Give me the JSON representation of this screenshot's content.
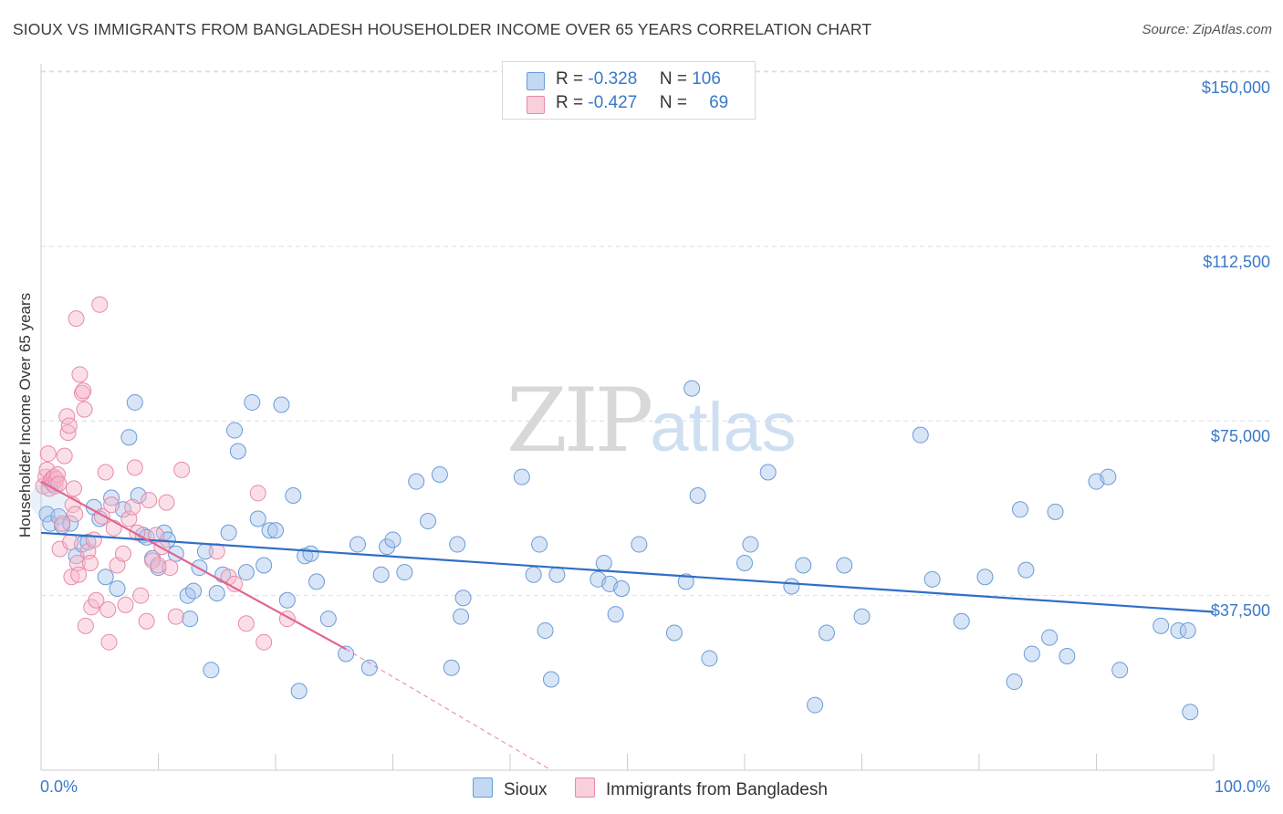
{
  "title": "SIOUX VS IMMIGRANTS FROM BANGLADESH HOUSEHOLDER INCOME OVER 65 YEARS CORRELATION CHART",
  "source": "Source: ZipAtlas.com",
  "watermark": {
    "zip": "ZIP",
    "atlas": "atlas"
  },
  "colors": {
    "sioux_fill": "#a9c6ee",
    "sioux_stroke": "#6b9bd8",
    "sioux_line": "#2f6fc7",
    "bang_fill": "#f6b9cc",
    "bang_stroke": "#e88aa8",
    "bang_line": "#e4648e",
    "grid": "#dddddd",
    "axis_label": "#3a78c9"
  },
  "legend_top": {
    "rows": [
      {
        "r_label": "R =",
        "r_value": "-0.328",
        "n_label": "N =",
        "n_value": "106"
      },
      {
        "r_label": "R =",
        "r_value": "-0.427",
        "n_label": "N =",
        "n_value": "69"
      }
    ]
  },
  "chart_data": {
    "type": "scatter",
    "title": "SIOUX VS IMMIGRANTS FROM BANGLADESH HOUSEHOLDER INCOME OVER 65 YEARS CORRELATION CHART",
    "xlabel": "",
    "ylabel": "Householder Income Over 65 years",
    "xlim": [
      0,
      100
    ],
    "ylim": [
      0,
      155000
    ],
    "x_tick_labels": [
      "0.0%",
      "100.0%"
    ],
    "y_ticks": [
      37500,
      75000,
      112500,
      150000
    ],
    "y_tick_labels": [
      "$37,500",
      "$75,000",
      "$112,500",
      "$150,000"
    ],
    "legend": [
      "Sioux",
      "Immigrants from Bangladesh"
    ],
    "series": [
      {
        "name": "Sioux",
        "stats": {
          "R": -0.328,
          "N": 106
        },
        "trend": {
          "x": [
            0,
            100
          ],
          "y": [
            51000,
            34000
          ]
        },
        "points": [
          [
            0.5,
            55000
          ],
          [
            0.8,
            53000
          ],
          [
            1.5,
            54500
          ],
          [
            1.8,
            52500
          ],
          [
            2.5,
            53000
          ],
          [
            3.0,
            46000
          ],
          [
            3.5,
            48500
          ],
          [
            4.0,
            49000
          ],
          [
            4.5,
            56500
          ],
          [
            5.0,
            54000
          ],
          [
            5.5,
            41500
          ],
          [
            6.0,
            58500
          ],
          [
            6.5,
            39000
          ],
          [
            7.0,
            56000
          ],
          [
            7.5,
            71500
          ],
          [
            8.0,
            79000
          ],
          [
            8.3,
            59000
          ],
          [
            8.7,
            50500
          ],
          [
            9.0,
            50000
          ],
          [
            9.5,
            45500
          ],
          [
            10.0,
            43500
          ],
          [
            10.5,
            51000
          ],
          [
            10.8,
            49500
          ],
          [
            11.5,
            46500
          ],
          [
            12.5,
            37500
          ],
          [
            12.7,
            32500
          ],
          [
            13.0,
            38500
          ],
          [
            13.5,
            43500
          ],
          [
            14.0,
            47000
          ],
          [
            14.5,
            21500
          ],
          [
            15.0,
            38000
          ],
          [
            15.5,
            42000
          ],
          [
            16.0,
            51000
          ],
          [
            16.5,
            73000
          ],
          [
            16.8,
            68500
          ],
          [
            17.5,
            42500
          ],
          [
            18.0,
            79000
          ],
          [
            18.5,
            54000
          ],
          [
            19.0,
            44000
          ],
          [
            19.5,
            51500
          ],
          [
            20.0,
            51500
          ],
          [
            20.5,
            78500
          ],
          [
            21.0,
            36500
          ],
          [
            21.5,
            59000
          ],
          [
            22.0,
            17000
          ],
          [
            22.5,
            46000
          ],
          [
            23.0,
            46500
          ],
          [
            23.5,
            40500
          ],
          [
            24.5,
            32500
          ],
          [
            26.0,
            25000
          ],
          [
            27.0,
            48500
          ],
          [
            28.0,
            22000
          ],
          [
            29.0,
            42000
          ],
          [
            29.5,
            48000
          ],
          [
            30.0,
            49500
          ],
          [
            31.0,
            42500
          ],
          [
            32.0,
            62000
          ],
          [
            33.0,
            53500
          ],
          [
            34.0,
            63500
          ],
          [
            35.0,
            22000
          ],
          [
            35.5,
            48500
          ],
          [
            35.8,
            33000
          ],
          [
            36.0,
            37000
          ],
          [
            41.0,
            63000
          ],
          [
            42.0,
            42000
          ],
          [
            42.5,
            48500
          ],
          [
            43.0,
            30000
          ],
          [
            43.5,
            19500
          ],
          [
            44.0,
            42000
          ],
          [
            47.5,
            41000
          ],
          [
            48.0,
            44500
          ],
          [
            48.5,
            40000
          ],
          [
            49.0,
            33500
          ],
          [
            49.5,
            39000
          ],
          [
            51.0,
            48500
          ],
          [
            54.0,
            29500
          ],
          [
            55.0,
            40500
          ],
          [
            55.5,
            82000
          ],
          [
            56.0,
            59000
          ],
          [
            57.0,
            24000
          ],
          [
            60.0,
            44500
          ],
          [
            60.5,
            48500
          ],
          [
            62.0,
            64000
          ],
          [
            64.0,
            39500
          ],
          [
            65.0,
            44000
          ],
          [
            66.0,
            14000
          ],
          [
            67.0,
            29500
          ],
          [
            68.5,
            44000
          ],
          [
            70.0,
            33000
          ],
          [
            75.0,
            72000
          ],
          [
            76.0,
            41000
          ],
          [
            78.5,
            32000
          ],
          [
            80.5,
            41500
          ],
          [
            83.0,
            19000
          ],
          [
            83.5,
            56000
          ],
          [
            84.0,
            43000
          ],
          [
            84.5,
            25000
          ],
          [
            86.0,
            28500
          ],
          [
            86.5,
            55500
          ],
          [
            87.5,
            24500
          ],
          [
            90.0,
            62000
          ],
          [
            91.0,
            63000
          ],
          [
            92.0,
            21500
          ],
          [
            95.5,
            31000
          ],
          [
            97.0,
            30000
          ],
          [
            97.8,
            30000
          ],
          [
            98.0,
            12500
          ]
        ]
      },
      {
        "name": "Immigrants from Bangladesh",
        "stats": {
          "R": -0.427,
          "N": 69
        },
        "trend": {
          "x": [
            0,
            26
          ],
          "y": [
            62000,
            26000
          ]
        },
        "trend_dashed": {
          "x": [
            26,
            43.5
          ],
          "y": [
            26000,
            0
          ]
        },
        "points": [
          [
            0.2,
            61000
          ],
          [
            0.4,
            63000
          ],
          [
            0.5,
            64500
          ],
          [
            0.6,
            68000
          ],
          [
            0.7,
            60500
          ],
          [
            0.8,
            62000
          ],
          [
            0.9,
            62500
          ],
          [
            1.0,
            61500
          ],
          [
            1.1,
            63000
          ],
          [
            1.2,
            61000
          ],
          [
            1.3,
            62500
          ],
          [
            1.4,
            63500
          ],
          [
            1.5,
            61500
          ],
          [
            1.6,
            47500
          ],
          [
            1.8,
            53000
          ],
          [
            2.0,
            67500
          ],
          [
            2.2,
            76000
          ],
          [
            2.3,
            72500
          ],
          [
            2.4,
            74000
          ],
          [
            2.5,
            49000
          ],
          [
            2.6,
            41500
          ],
          [
            2.7,
            57000
          ],
          [
            2.8,
            60500
          ],
          [
            2.9,
            55000
          ],
          [
            3.0,
            97000
          ],
          [
            3.1,
            44500
          ],
          [
            3.2,
            42000
          ],
          [
            3.3,
            85000
          ],
          [
            3.5,
            81000
          ],
          [
            3.6,
            81500
          ],
          [
            3.7,
            77500
          ],
          [
            3.8,
            31000
          ],
          [
            4.0,
            47000
          ],
          [
            4.2,
            44500
          ],
          [
            4.3,
            35000
          ],
          [
            4.5,
            49500
          ],
          [
            4.7,
            36500
          ],
          [
            5.0,
            100000
          ],
          [
            5.2,
            54500
          ],
          [
            5.5,
            64000
          ],
          [
            5.7,
            34500
          ],
          [
            5.8,
            27500
          ],
          [
            6.0,
            57000
          ],
          [
            6.2,
            52000
          ],
          [
            6.5,
            44000
          ],
          [
            7.0,
            46500
          ],
          [
            7.2,
            35500
          ],
          [
            7.5,
            54000
          ],
          [
            7.8,
            56500
          ],
          [
            8.0,
            65000
          ],
          [
            8.2,
            51000
          ],
          [
            8.5,
            37500
          ],
          [
            9.0,
            32000
          ],
          [
            9.2,
            58000
          ],
          [
            9.5,
            45000
          ],
          [
            9.8,
            50500
          ],
          [
            10.0,
            44000
          ],
          [
            10.3,
            48000
          ],
          [
            10.7,
            57500
          ],
          [
            11.0,
            43500
          ],
          [
            11.5,
            33000
          ],
          [
            12.0,
            64500
          ],
          [
            15.0,
            47000
          ],
          [
            16.0,
            41500
          ],
          [
            16.5,
            40000
          ],
          [
            17.5,
            31500
          ],
          [
            18.5,
            59500
          ],
          [
            19.0,
            27500
          ],
          [
            21.0,
            32500
          ]
        ]
      }
    ]
  }
}
